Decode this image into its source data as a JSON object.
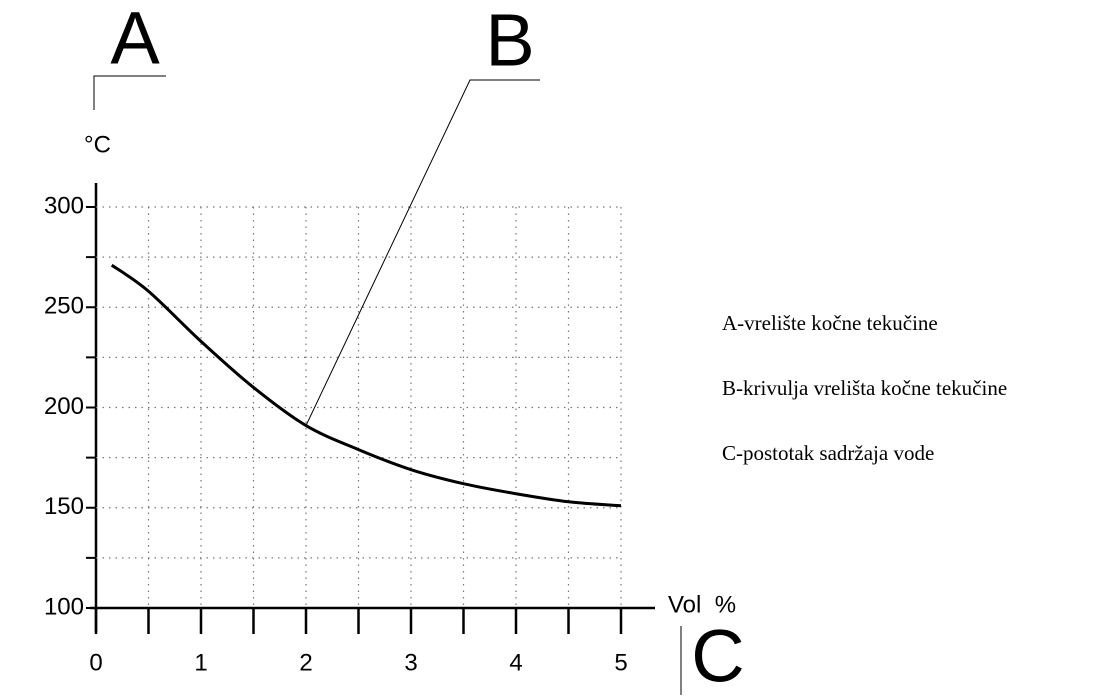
{
  "chart_data": {
    "type": "line",
    "x_label": "Vol  %",
    "y_label": "°C",
    "x": [
      0.15,
      0.5,
      1,
      1.5,
      2,
      2.5,
      3,
      3.5,
      4,
      4.5,
      5
    ],
    "series": [
      {
        "name": "B-krivulja vrelišta kočne tekučine",
        "color": "#000000",
        "values": [
          271,
          258,
          233,
          210,
          191,
          179,
          169,
          162,
          157,
          153,
          151
        ]
      }
    ],
    "xlim": [
      0,
      5
    ],
    "xticks": [
      0,
      1,
      2,
      3,
      4,
      5
    ],
    "xminorticks": [
      0.5,
      1.5,
      2.5,
      3.5,
      4.5
    ],
    "ylim": [
      100,
      300
    ],
    "yticks": [
      100,
      150,
      200,
      250,
      300
    ],
    "yminorticks": [
      125,
      175,
      225,
      275
    ],
    "grid": true,
    "labels": {
      "a": "A",
      "b": "B",
      "c": "C"
    },
    "annotation_b": {
      "x": 2,
      "y": 191
    },
    "notes": [
      "A-vrelište kočne tekučine",
      "B-krivulja vrelišta kočne tekučine",
      "C-postotak sadržaja vode"
    ]
  }
}
